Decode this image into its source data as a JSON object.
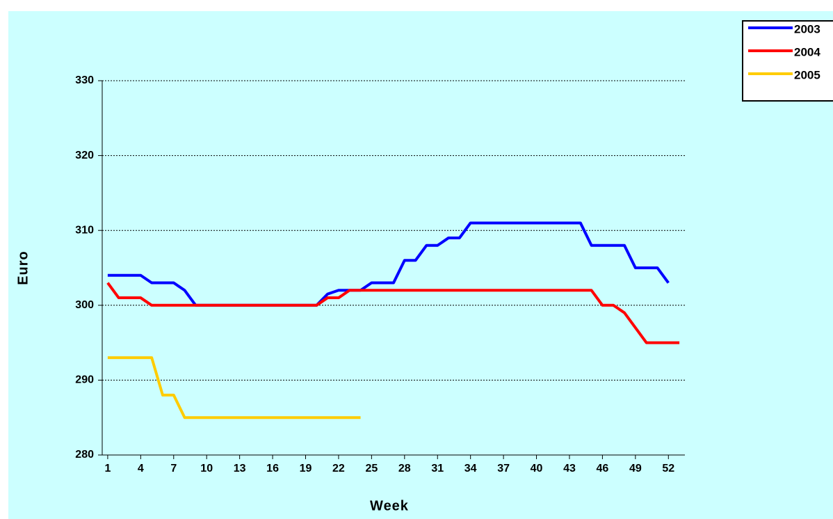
{
  "chart_data": {
    "type": "line",
    "x_label": "Week",
    "y_label": "Euro",
    "x": [
      1,
      2,
      3,
      4,
      5,
      6,
      7,
      8,
      9,
      10,
      11,
      12,
      13,
      14,
      15,
      16,
      17,
      18,
      19,
      20,
      21,
      22,
      23,
      24,
      25,
      26,
      27,
      28,
      29,
      30,
      31,
      32,
      33,
      34,
      35,
      36,
      37,
      38,
      39,
      40,
      41,
      42,
      43,
      44,
      45,
      46,
      47,
      48,
      49,
      50,
      51,
      52,
      53
    ],
    "xlim": [
      0.5,
      53.5
    ],
    "xticks": [
      1,
      4,
      7,
      10,
      13,
      16,
      19,
      22,
      25,
      28,
      31,
      34,
      37,
      40,
      43,
      46,
      49,
      52
    ],
    "ylim": [
      280,
      330
    ],
    "yticks": [
      280,
      290,
      300,
      310,
      320,
      330
    ],
    "grid": true,
    "legend": "top-right",
    "series": [
      {
        "name": "2003",
        "color": "#0000ff",
        "values": [
          304,
          304,
          304,
          304,
          303,
          303,
          303,
          302,
          300,
          300,
          300,
          300,
          300,
          300,
          300,
          300,
          300,
          300,
          300,
          300,
          301.5,
          302,
          302,
          302,
          303,
          303,
          303,
          306,
          306,
          308,
          308,
          309,
          309,
          311,
          311,
          311,
          311,
          311,
          311,
          311,
          311,
          311,
          311,
          311,
          308,
          308,
          308,
          308,
          305,
          305,
          305,
          303,
          null
        ]
      },
      {
        "name": "2004",
        "color": "#ff0000",
        "values": [
          303,
          301,
          301,
          301,
          300,
          300,
          300,
          300,
          300,
          300,
          300,
          300,
          300,
          300,
          300,
          300,
          300,
          300,
          300,
          300,
          301,
          301,
          302,
          302,
          302,
          302,
          302,
          302,
          302,
          302,
          302,
          302,
          302,
          302,
          302,
          302,
          302,
          302,
          302,
          302,
          302,
          302,
          302,
          302,
          302,
          300,
          300,
          299,
          297,
          295,
          295,
          295,
          295
        ]
      },
      {
        "name": "2005",
        "color": "#ffcc00",
        "values": [
          293,
          293,
          293,
          293,
          293,
          288,
          288,
          285,
          285,
          285,
          285,
          285,
          285,
          285,
          285,
          285,
          285,
          285,
          285,
          285,
          285,
          285,
          285,
          285,
          null,
          null,
          null,
          null,
          null,
          null,
          null,
          null,
          null,
          null,
          null,
          null,
          null,
          null,
          null,
          null,
          null,
          null,
          null,
          null,
          null,
          null,
          null,
          null,
          null,
          null,
          null,
          null,
          null
        ]
      }
    ]
  }
}
